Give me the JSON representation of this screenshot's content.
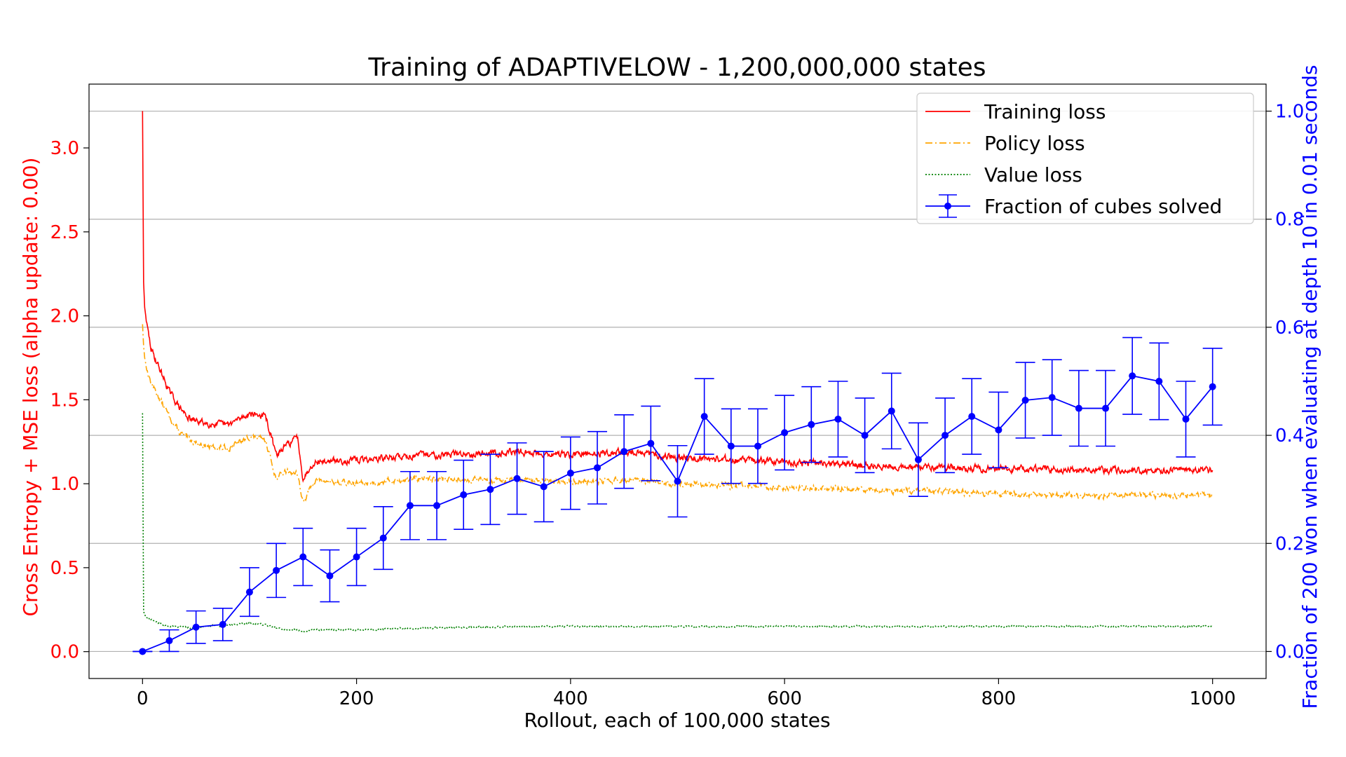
{
  "chart_data": {
    "type": "line",
    "title": "Training of ADAPTIVELOW - 1,200,000,000 states",
    "xlabel": "Rollout, each of 100,000 states",
    "ylabel_left": "Cross Entropy + MSE loss (alpha update: 0.00)",
    "ylabel_right": "Fraction of 200 won when evaluating at depth 10 in 0.01 seconds",
    "xlim": [
      -50,
      1050
    ],
    "ylim_left": [
      -0.16,
      3.38
    ],
    "ylim_right": [
      -0.05,
      1.05
    ],
    "xticks": [
      "0",
      "200",
      "400",
      "600",
      "800",
      "1000"
    ],
    "yticks_left": [
      "0.0",
      "0.5",
      "1.0",
      "1.5",
      "2.0",
      "2.5",
      "3.0"
    ],
    "yticks_right": [
      "0.0",
      "0.2",
      "0.4",
      "0.6",
      "0.8",
      "1.0"
    ],
    "grid": "horizontal (right axis)",
    "legend_position": "top-right",
    "colors": {
      "left_axis": "#ff0000",
      "right_axis": "#0000ff",
      "training": "#ff0000",
      "policy": "#ffa500",
      "value": "#008000",
      "fraction": "#0000ff",
      "grid": "#b0b0b0"
    },
    "loss_anchors": {
      "x": [
        0,
        1,
        2,
        4,
        8,
        15,
        25,
        35,
        45,
        60,
        80,
        100,
        115,
        125,
        135,
        145,
        150,
        160,
        200,
        260,
        350,
        400,
        450,
        500,
        600,
        700,
        800,
        900,
        1000
      ],
      "training": [
        3.22,
        2.2,
        2.05,
        1.95,
        1.8,
        1.7,
        1.55,
        1.45,
        1.38,
        1.36,
        1.35,
        1.42,
        1.4,
        1.17,
        1.23,
        1.28,
        1.03,
        1.13,
        1.14,
        1.17,
        1.19,
        1.17,
        1.19,
        1.16,
        1.13,
        1.1,
        1.09,
        1.08,
        1.08
      ],
      "policy": [
        1.95,
        1.82,
        1.75,
        1.68,
        1.6,
        1.52,
        1.4,
        1.3,
        1.26,
        1.22,
        1.21,
        1.28,
        1.26,
        1.03,
        1.08,
        1.06,
        0.88,
        1.02,
        1.0,
        1.03,
        1.02,
        1.01,
        1.02,
        1.0,
        0.98,
        0.96,
        0.94,
        0.93,
        0.93
      ],
      "value": [
        1.42,
        0.24,
        0.22,
        0.2,
        0.19,
        0.17,
        0.15,
        0.15,
        0.14,
        0.15,
        0.16,
        0.17,
        0.16,
        0.14,
        0.13,
        0.13,
        0.12,
        0.13,
        0.13,
        0.14,
        0.15,
        0.15,
        0.15,
        0.15,
        0.15,
        0.15,
        0.15,
        0.15,
        0.15
      ]
    },
    "fraction_series": {
      "x": [
        0,
        25,
        50,
        75,
        100,
        125,
        150,
        175,
        200,
        225,
        250,
        275,
        300,
        325,
        350,
        375,
        400,
        425,
        450,
        475,
        500,
        525,
        550,
        575,
        600,
        625,
        650,
        675,
        700,
        725,
        750,
        775,
        800,
        825,
        850,
        875,
        900,
        925,
        950,
        975,
        1000
      ],
      "y": [
        0.0,
        0.02,
        0.045,
        0.05,
        0.11,
        0.15,
        0.175,
        0.14,
        0.175,
        0.21,
        0.27,
        0.27,
        0.29,
        0.3,
        0.32,
        0.305,
        0.33,
        0.34,
        0.37,
        0.385,
        0.315,
        0.435,
        0.38,
        0.38,
        0.405,
        0.42,
        0.43,
        0.4,
        0.445,
        0.355,
        0.4,
        0.435,
        0.41,
        0.465,
        0.47,
        0.45,
        0.45,
        0.51,
        0.5,
        0.43,
        0.49
      ],
      "err": [
        0.0,
        0.02,
        0.03,
        0.03,
        0.045,
        0.05,
        0.053,
        0.048,
        0.053,
        0.058,
        0.063,
        0.063,
        0.064,
        0.065,
        0.066,
        0.065,
        0.067,
        0.067,
        0.068,
        0.069,
        0.066,
        0.07,
        0.069,
        0.069,
        0.069,
        0.07,
        0.07,
        0.069,
        0.07,
        0.068,
        0.069,
        0.07,
        0.07,
        0.07,
        0.07,
        0.07,
        0.07,
        0.071,
        0.071,
        0.07,
        0.071
      ]
    },
    "legend": [
      {
        "label": "Training loss",
        "style": "solid",
        "color": "#ff0000"
      },
      {
        "label": "Policy loss",
        "style": "dashdot",
        "color": "#ffa500"
      },
      {
        "label": "Value loss",
        "style": "dotted",
        "color": "#008000"
      },
      {
        "label": "Fraction of cubes solved",
        "style": "errorbar",
        "color": "#0000ff"
      }
    ]
  }
}
